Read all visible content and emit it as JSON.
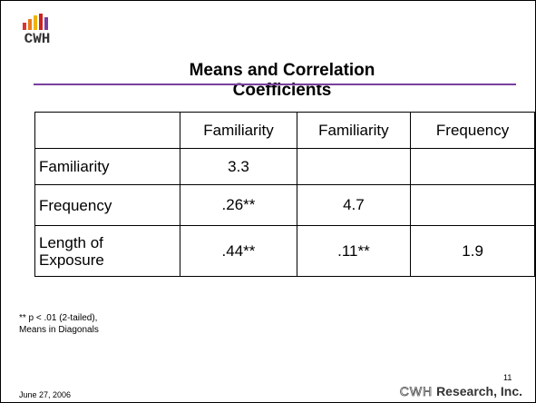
{
  "header": {
    "logo": "CWH",
    "title": "Means and Correlation Coefficients"
  },
  "table": {
    "columns": [
      "Familiarity",
      "Familiarity",
      "Frequency"
    ],
    "rows": [
      {
        "label": "Familiarity",
        "cells": [
          "3.3"
        ]
      },
      {
        "label": "Frequency",
        "cells": [
          ".26**",
          "4.7"
        ]
      },
      {
        "label": "Length of Exposure",
        "cells": [
          ".44**",
          ".11**",
          "1.9"
        ]
      }
    ]
  },
  "footnote": [
    "** p < .01 (2-tailed),",
    "Means in Diagonals"
  ],
  "footer": {
    "date": "June 27, 2006",
    "page": "11",
    "company_mark": "CWH",
    "company": "Research, Inc."
  }
}
